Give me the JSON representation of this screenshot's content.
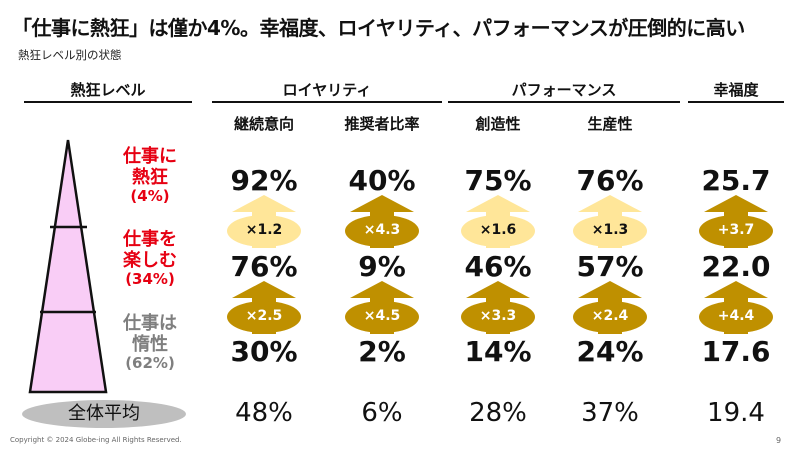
{
  "title": "「仕事に熱狂」は僅か4%。幸福度、ロイヤリティ、パフォーマンスが圧倒的に高い",
  "subtitle": "熱狂レベル別の状態",
  "headers": {
    "level": "熱狂レベル",
    "loyalty": "ロイヤリティ",
    "performance": "パフォーマンス",
    "happiness": "幸福度"
  },
  "subheaders": {
    "continuation": "継続意向",
    "recommend": "推奨者比率",
    "creativity": "創造性",
    "productivity": "生産性"
  },
  "levels": [
    {
      "line1": "仕事に",
      "line2": "熱狂",
      "pct": "(4%)",
      "color": "#e60012"
    },
    {
      "line1": "仕事を",
      "line2": "楽しむ",
      "pct": "(34%)",
      "color": "#e60012"
    },
    {
      "line1": "仕事は",
      "line2": "惰性",
      "pct": "(62%)",
      "color": "#7f7f7f"
    }
  ],
  "rows": [
    [
      "92%",
      "40%",
      "75%",
      "76%",
      "25.7"
    ],
    [
      "76%",
      "9%",
      "46%",
      "57%",
      "22.0"
    ],
    [
      "30%",
      "2%",
      "14%",
      "24%",
      "17.6"
    ]
  ],
  "arrows_upper": [
    {
      "label": "×1.2",
      "style": "light"
    },
    {
      "label": "×4.3",
      "style": "dark"
    },
    {
      "label": "×1.6",
      "style": "light"
    },
    {
      "label": "×1.3",
      "style": "light"
    },
    {
      "label": "+3.7",
      "style": "dark"
    }
  ],
  "arrows_lower": [
    {
      "label": "×2.5",
      "style": "dark"
    },
    {
      "label": "×4.5",
      "style": "dark"
    },
    {
      "label": "×3.3",
      "style": "dark"
    },
    {
      "label": "×2.4",
      "style": "dark"
    },
    {
      "label": "+4.4",
      "style": "dark"
    }
  ],
  "average": {
    "label": "全体平均",
    "values": [
      "48%",
      "6%",
      "28%",
      "37%",
      "19.4"
    ]
  },
  "colors": {
    "red": "#e60012",
    "gray": "#7f7f7f",
    "arrow_dark": "#bf9000",
    "arrow_light": "#ffe699",
    "pyramid_fill": "#f9cdf6",
    "pill": "#bfbfbf"
  },
  "footer": {
    "copyright": "Copyright © 2024 Globe-ing All Rights Reserved.",
    "page": "9"
  }
}
